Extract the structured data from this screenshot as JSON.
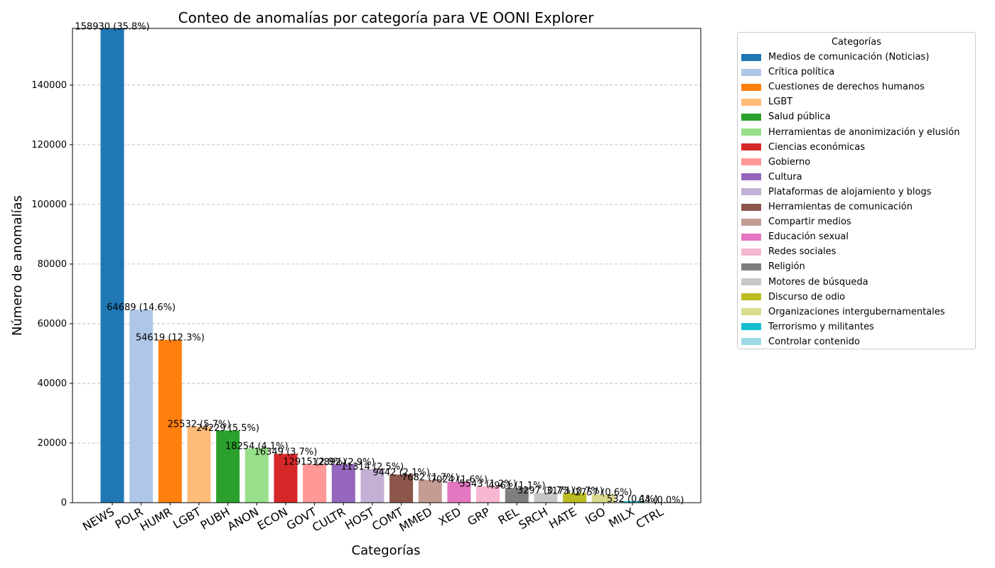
{
  "chart_data": {
    "type": "bar",
    "title": "Conteo de anomalías por categoría para VE OONI Explorer",
    "xlabel": "Categorías",
    "ylabel": "Número de anomalías",
    "ylim": [
      0,
      159000
    ],
    "yticks": [
      0,
      20000,
      40000,
      60000,
      80000,
      100000,
      120000,
      140000
    ],
    "grid": "y-dashed",
    "legend_title": "Categorías",
    "legend_position": "outside-right",
    "categories": [
      "NEWS",
      "POLR",
      "HUMR",
      "LGBT",
      "PUBH",
      "ANON",
      "ECON",
      "GOVT",
      "CULTR",
      "HOST",
      "COMT",
      "MMED",
      "XED",
      "GRP",
      "REL",
      "SRCH",
      "HATE",
      "IGO",
      "MILX",
      "CTRL"
    ],
    "values": [
      158930,
      64689,
      54619,
      25532,
      24229,
      18254,
      16349,
      12915,
      12892,
      11314,
      9442,
      7682,
      7024,
      5543,
      4961,
      3297,
      3173,
      2757,
      532,
      64
    ],
    "data_labels": [
      "158930 (35.8%)",
      "64689 (14.6%)",
      "54619 (12.3%)",
      "25532 (5.7%)",
      "24229 (5.5%)",
      "18254 (4.1%)",
      "16349 (3.7%)",
      "12915 (2.9%)",
      "12892 (2.9%)",
      "11314 (2.5%)",
      "9442 (2.1%)",
      "7682 (1.7%)",
      "7024 (1.6%)",
      "5543 (1.2%)",
      "4961 (1.1%)",
      "3297 (0.7%)",
      "3173 (0.7%)",
      "2757 (0.6%)",
      "532 (0.1%)",
      "64 (0.0%)"
    ],
    "legend_labels": [
      "Medios de comunicación (Noticias)",
      "Crítica política",
      "Cuestiones de derechos humanos",
      "LGBT",
      "Salud pública",
      "Herramientas de anonimización y elusión",
      "Ciencias económicas",
      "Gobierno",
      "Cultura",
      "Plataformas de alojamiento y blogs",
      "Herramientas de comunicación",
      "Compartir medios",
      "Educación sexual",
      "Redes sociales",
      "Religión",
      "Motores de búsqueda",
      "Discurso de odio",
      "Organizaciones intergubernamentales",
      "Terrorismo y militantes",
      "Controlar contenido"
    ],
    "colors": [
      "#1f77b4",
      "#aec7e8",
      "#ff7f0e",
      "#ffbb78",
      "#2ca02c",
      "#98df8a",
      "#d62728",
      "#ff9896",
      "#9467bd",
      "#c5b0d5",
      "#8c564b",
      "#c49c94",
      "#e377c2",
      "#f7b6d2",
      "#7f7f7f",
      "#c7c7c7",
      "#bcbd22",
      "#dbdb8d",
      "#17becf",
      "#9edae5"
    ]
  }
}
